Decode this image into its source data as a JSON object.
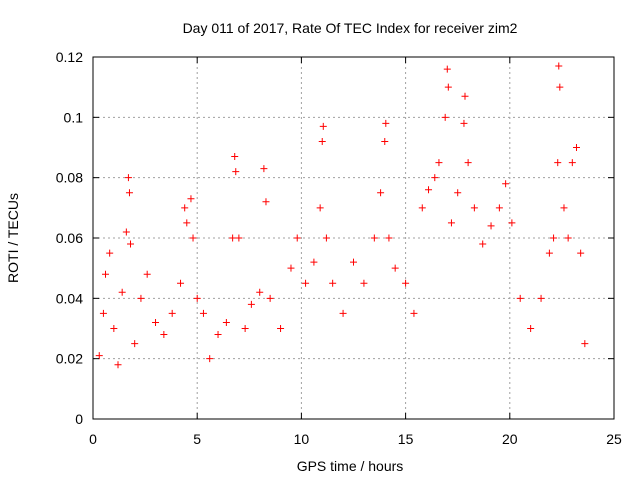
{
  "chart_data": {
    "type": "scatter",
    "title": "Day 011 of 2017, Rate Of TEC Index for receiver zim2",
    "xlabel": "GPS time / hours",
    "ylabel": "ROTI / TECUs",
    "xlim": [
      0,
      25
    ],
    "ylim": [
      0,
      0.12
    ],
    "xticks": [
      0,
      5,
      10,
      15,
      20,
      25
    ],
    "xtick_labels": [
      "0",
      "5",
      "10",
      "15",
      "20",
      "25"
    ],
    "yticks": [
      0,
      0.02,
      0.04,
      0.06,
      0.08,
      0.1,
      0.12
    ],
    "ytick_labels": [
      "0",
      "0.02",
      "0.04",
      "0.06",
      "0.08",
      "0.1",
      "0.12"
    ],
    "grid": true,
    "marker": "+",
    "color": "#ff0000",
    "series": [
      {
        "points": [
          [
            0.3,
            0.021
          ],
          [
            0.5,
            0.035
          ],
          [
            0.6,
            0.048
          ],
          [
            0.8,
            0.055
          ],
          [
            1.0,
            0.03
          ],
          [
            1.2,
            0.018
          ],
          [
            1.4,
            0.042
          ],
          [
            1.6,
            0.062
          ],
          [
            1.7,
            0.08
          ],
          [
            1.75,
            0.075
          ],
          [
            1.8,
            0.058
          ],
          [
            2.0,
            0.025
          ],
          [
            2.3,
            0.04
          ],
          [
            2.6,
            0.048
          ],
          [
            3.0,
            0.032
          ],
          [
            3.4,
            0.028
          ],
          [
            3.8,
            0.035
          ],
          [
            4.2,
            0.045
          ],
          [
            4.4,
            0.07
          ],
          [
            4.5,
            0.065
          ],
          [
            4.7,
            0.073
          ],
          [
            4.8,
            0.06
          ],
          [
            5.0,
            0.04
          ],
          [
            5.3,
            0.035
          ],
          [
            5.6,
            0.02
          ],
          [
            6.0,
            0.028
          ],
          [
            6.4,
            0.032
          ],
          [
            6.7,
            0.06
          ],
          [
            6.8,
            0.087
          ],
          [
            6.85,
            0.082
          ],
          [
            7.0,
            0.06
          ],
          [
            7.3,
            0.03
          ],
          [
            7.6,
            0.038
          ],
          [
            8.0,
            0.042
          ],
          [
            8.2,
            0.083
          ],
          [
            8.3,
            0.072
          ],
          [
            8.5,
            0.04
          ],
          [
            9.0,
            0.03
          ],
          [
            9.5,
            0.05
          ],
          [
            9.8,
            0.06
          ],
          [
            10.2,
            0.045
          ],
          [
            10.6,
            0.052
          ],
          [
            10.9,
            0.07
          ],
          [
            11.0,
            0.092
          ],
          [
            11.05,
            0.097
          ],
          [
            11.2,
            0.06
          ],
          [
            11.5,
            0.045
          ],
          [
            12.0,
            0.035
          ],
          [
            12.5,
            0.052
          ],
          [
            13.0,
            0.045
          ],
          [
            13.5,
            0.06
          ],
          [
            13.8,
            0.075
          ],
          [
            14.0,
            0.092
          ],
          [
            14.05,
            0.098
          ],
          [
            14.2,
            0.06
          ],
          [
            14.5,
            0.05
          ],
          [
            15.0,
            0.045
          ],
          [
            15.4,
            0.035
          ],
          [
            15.8,
            0.07
          ],
          [
            16.1,
            0.076
          ],
          [
            16.4,
            0.08
          ],
          [
            16.6,
            0.085
          ],
          [
            16.9,
            0.1
          ],
          [
            17.0,
            0.116
          ],
          [
            17.05,
            0.11
          ],
          [
            17.2,
            0.065
          ],
          [
            17.5,
            0.075
          ],
          [
            17.8,
            0.098
          ],
          [
            17.85,
            0.107
          ],
          [
            18.0,
            0.085
          ],
          [
            18.3,
            0.07
          ],
          [
            18.7,
            0.058
          ],
          [
            19.1,
            0.064
          ],
          [
            19.5,
            0.07
          ],
          [
            19.8,
            0.078
          ],
          [
            20.1,
            0.065
          ],
          [
            20.5,
            0.04
          ],
          [
            21.0,
            0.03
          ],
          [
            21.5,
            0.04
          ],
          [
            21.9,
            0.055
          ],
          [
            22.1,
            0.06
          ],
          [
            22.3,
            0.085
          ],
          [
            22.35,
            0.117
          ],
          [
            22.4,
            0.11
          ],
          [
            22.6,
            0.07
          ],
          [
            22.8,
            0.06
          ],
          [
            23.0,
            0.085
          ],
          [
            23.2,
            0.09
          ],
          [
            23.4,
            0.055
          ],
          [
            23.6,
            0.025
          ]
        ]
      }
    ]
  }
}
